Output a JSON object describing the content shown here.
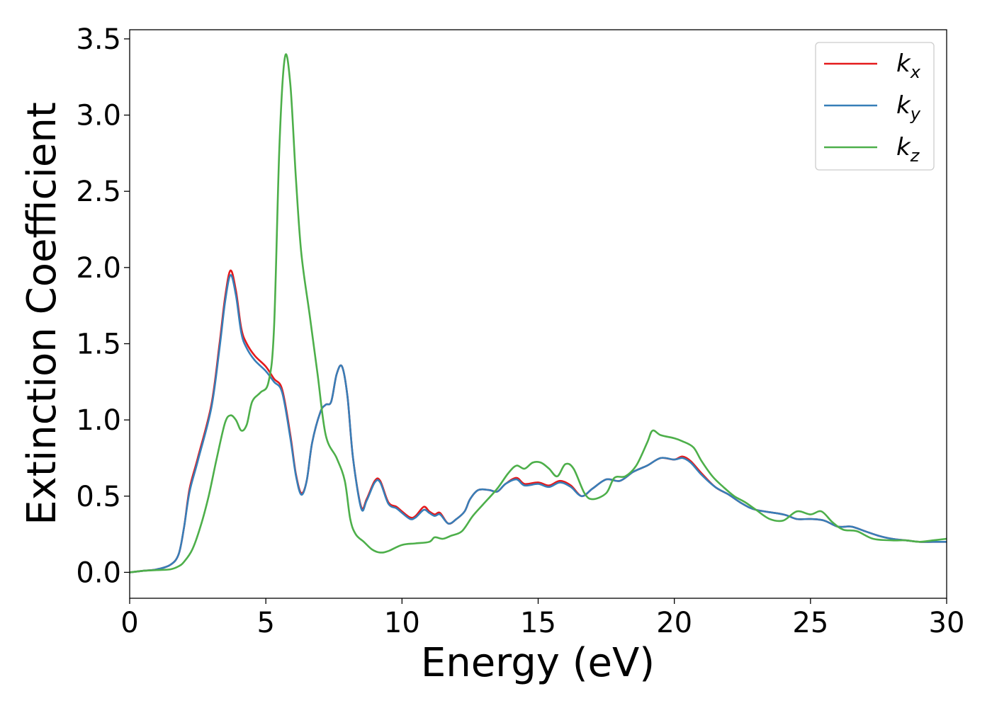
{
  "chart_data": {
    "type": "line",
    "xlabel": "Energy (eV)",
    "ylabel": "Extinction Coefficient",
    "xlim": [
      0,
      30
    ],
    "ylim": [
      -0.17,
      3.56
    ],
    "xticks": [
      "0",
      "5",
      "10",
      "15",
      "20",
      "25",
      "30"
    ],
    "yticks": [
      "0.0",
      "0.5",
      "1.0",
      "1.5",
      "2.0",
      "2.5",
      "3.0",
      "3.5"
    ],
    "grid": false,
    "legend_position": "top-right",
    "series": [
      {
        "name": "k",
        "sub": "x",
        "color": "#e41a1c",
        "points": [
          [
            0,
            0
          ],
          [
            0.5,
            0.01
          ],
          [
            1,
            0.02
          ],
          [
            1.5,
            0.05
          ],
          [
            1.8,
            0.12
          ],
          [
            2,
            0.3
          ],
          [
            2.2,
            0.55
          ],
          [
            2.5,
            0.75
          ],
          [
            3,
            1.1
          ],
          [
            3.3,
            1.5
          ],
          [
            3.5,
            1.8
          ],
          [
            3.7,
            1.98
          ],
          [
            3.9,
            1.85
          ],
          [
            4.1,
            1.6
          ],
          [
            4.3,
            1.5
          ],
          [
            4.6,
            1.42
          ],
          [
            5,
            1.35
          ],
          [
            5.3,
            1.27
          ],
          [
            5.6,
            1.2
          ],
          [
            5.9,
            0.9
          ],
          [
            6.1,
            0.65
          ],
          [
            6.3,
            0.52
          ],
          [
            6.5,
            0.6
          ],
          [
            6.7,
            0.85
          ],
          [
            7,
            1.05
          ],
          [
            7.2,
            1.1
          ],
          [
            7.4,
            1.12
          ],
          [
            7.6,
            1.3
          ],
          [
            7.8,
            1.35
          ],
          [
            8,
            1.15
          ],
          [
            8.2,
            0.75
          ],
          [
            8.5,
            0.43
          ],
          [
            8.7,
            0.48
          ],
          [
            9,
            0.6
          ],
          [
            9.2,
            0.6
          ],
          [
            9.5,
            0.46
          ],
          [
            9.8,
            0.43
          ],
          [
            10,
            0.4
          ],
          [
            10.3,
            0.36
          ],
          [
            10.5,
            0.37
          ],
          [
            10.8,
            0.43
          ],
          [
            11,
            0.4
          ],
          [
            11.2,
            0.38
          ],
          [
            11.4,
            0.39
          ],
          [
            11.7,
            0.32
          ],
          [
            12,
            0.35
          ],
          [
            12.3,
            0.4
          ],
          [
            12.5,
            0.48
          ],
          [
            12.8,
            0.54
          ],
          [
            13.2,
            0.54
          ],
          [
            13.5,
            0.53
          ],
          [
            13.8,
            0.58
          ],
          [
            14.2,
            0.62
          ],
          [
            14.5,
            0.58
          ],
          [
            15,
            0.59
          ],
          [
            15.4,
            0.57
          ],
          [
            15.8,
            0.6
          ],
          [
            16.2,
            0.57
          ],
          [
            16.6,
            0.5
          ],
          [
            17,
            0.55
          ],
          [
            17.5,
            0.61
          ],
          [
            18,
            0.6
          ],
          [
            18.5,
            0.66
          ],
          [
            19,
            0.7
          ],
          [
            19.5,
            0.75
          ],
          [
            20,
            0.74
          ],
          [
            20.3,
            0.76
          ],
          [
            20.6,
            0.73
          ],
          [
            21,
            0.65
          ],
          [
            21.5,
            0.56
          ],
          [
            22,
            0.51
          ],
          [
            22.5,
            0.45
          ],
          [
            23,
            0.41
          ],
          [
            24,
            0.38
          ],
          [
            24.5,
            0.35
          ],
          [
            25,
            0.35
          ],
          [
            25.5,
            0.34
          ],
          [
            26,
            0.3
          ],
          [
            26.5,
            0.3
          ],
          [
            27,
            0.27
          ],
          [
            27.5,
            0.24
          ],
          [
            28,
            0.22
          ],
          [
            28.5,
            0.21
          ],
          [
            29,
            0.2
          ],
          [
            29.5,
            0.2
          ],
          [
            30,
            0.2
          ]
        ]
      },
      {
        "name": "k",
        "sub": "y",
        "color": "#377eb8",
        "points": [
          [
            0,
            0
          ],
          [
            0.5,
            0.01
          ],
          [
            1,
            0.02
          ],
          [
            1.5,
            0.05
          ],
          [
            1.8,
            0.12
          ],
          [
            2,
            0.3
          ],
          [
            2.2,
            0.53
          ],
          [
            2.5,
            0.73
          ],
          [
            3,
            1.08
          ],
          [
            3.3,
            1.47
          ],
          [
            3.5,
            1.77
          ],
          [
            3.7,
            1.95
          ],
          [
            3.9,
            1.82
          ],
          [
            4.1,
            1.57
          ],
          [
            4.3,
            1.47
          ],
          [
            4.6,
            1.39
          ],
          [
            5,
            1.32
          ],
          [
            5.3,
            1.25
          ],
          [
            5.6,
            1.18
          ],
          [
            5.9,
            0.88
          ],
          [
            6.1,
            0.64
          ],
          [
            6.3,
            0.51
          ],
          [
            6.5,
            0.6
          ],
          [
            6.7,
            0.85
          ],
          [
            7,
            1.05
          ],
          [
            7.2,
            1.1
          ],
          [
            7.4,
            1.12
          ],
          [
            7.6,
            1.3
          ],
          [
            7.8,
            1.35
          ],
          [
            8,
            1.15
          ],
          [
            8.2,
            0.75
          ],
          [
            8.5,
            0.42
          ],
          [
            8.7,
            0.47
          ],
          [
            9,
            0.59
          ],
          [
            9.2,
            0.59
          ],
          [
            9.5,
            0.45
          ],
          [
            9.8,
            0.42
          ],
          [
            10,
            0.39
          ],
          [
            10.3,
            0.35
          ],
          [
            10.5,
            0.36
          ],
          [
            10.8,
            0.41
          ],
          [
            11,
            0.39
          ],
          [
            11.2,
            0.37
          ],
          [
            11.4,
            0.38
          ],
          [
            11.7,
            0.32
          ],
          [
            12,
            0.35
          ],
          [
            12.3,
            0.4
          ],
          [
            12.5,
            0.48
          ],
          [
            12.8,
            0.54
          ],
          [
            13.2,
            0.54
          ],
          [
            13.5,
            0.53
          ],
          [
            13.8,
            0.58
          ],
          [
            14.2,
            0.61
          ],
          [
            14.5,
            0.57
          ],
          [
            15,
            0.58
          ],
          [
            15.4,
            0.56
          ],
          [
            15.8,
            0.59
          ],
          [
            16.2,
            0.56
          ],
          [
            16.6,
            0.5
          ],
          [
            17,
            0.55
          ],
          [
            17.5,
            0.61
          ],
          [
            18,
            0.6
          ],
          [
            18.5,
            0.66
          ],
          [
            19,
            0.7
          ],
          [
            19.5,
            0.75
          ],
          [
            20,
            0.74
          ],
          [
            20.3,
            0.75
          ],
          [
            20.6,
            0.72
          ],
          [
            21,
            0.64
          ],
          [
            21.5,
            0.56
          ],
          [
            22,
            0.51
          ],
          [
            22.5,
            0.45
          ],
          [
            23,
            0.41
          ],
          [
            24,
            0.38
          ],
          [
            24.5,
            0.35
          ],
          [
            25,
            0.35
          ],
          [
            25.5,
            0.34
          ],
          [
            26,
            0.3
          ],
          [
            26.5,
            0.3
          ],
          [
            27,
            0.27
          ],
          [
            27.5,
            0.24
          ],
          [
            28,
            0.22
          ],
          [
            28.5,
            0.21
          ],
          [
            29,
            0.2
          ],
          [
            29.5,
            0.2
          ],
          [
            30,
            0.2
          ]
        ]
      },
      {
        "name": "k",
        "sub": "z",
        "color": "#4daf4a",
        "points": [
          [
            0,
            0
          ],
          [
            0.5,
            0.01
          ],
          [
            1,
            0.015
          ],
          [
            1.5,
            0.02
          ],
          [
            1.8,
            0.04
          ],
          [
            2,
            0.07
          ],
          [
            2.3,
            0.15
          ],
          [
            2.6,
            0.3
          ],
          [
            2.9,
            0.5
          ],
          [
            3.2,
            0.75
          ],
          [
            3.5,
            0.98
          ],
          [
            3.7,
            1.03
          ],
          [
            3.9,
            1.0
          ],
          [
            4.1,
            0.93
          ],
          [
            4.3,
            0.97
          ],
          [
            4.5,
            1.12
          ],
          [
            4.8,
            1.18
          ],
          [
            5.1,
            1.25
          ],
          [
            5.3,
            1.6
          ],
          [
            5.5,
            2.8
          ],
          [
            5.7,
            3.38
          ],
          [
            5.9,
            3.2
          ],
          [
            6.1,
            2.6
          ],
          [
            6.3,
            2.1
          ],
          [
            6.6,
            1.7
          ],
          [
            6.9,
            1.3
          ],
          [
            7.2,
            0.9
          ],
          [
            7.6,
            0.75
          ],
          [
            7.9,
            0.6
          ],
          [
            8.1,
            0.35
          ],
          [
            8.3,
            0.25
          ],
          [
            8.6,
            0.2
          ],
          [
            8.9,
            0.15
          ],
          [
            9.2,
            0.13
          ],
          [
            9.5,
            0.14
          ],
          [
            10,
            0.18
          ],
          [
            10.5,
            0.19
          ],
          [
            11,
            0.2
          ],
          [
            11.2,
            0.23
          ],
          [
            11.5,
            0.22
          ],
          [
            11.8,
            0.24
          ],
          [
            12.2,
            0.27
          ],
          [
            12.6,
            0.37
          ],
          [
            13,
            0.45
          ],
          [
            13.5,
            0.55
          ],
          [
            13.9,
            0.65
          ],
          [
            14.2,
            0.7
          ],
          [
            14.5,
            0.68
          ],
          [
            14.8,
            0.72
          ],
          [
            15.1,
            0.72
          ],
          [
            15.4,
            0.68
          ],
          [
            15.7,
            0.63
          ],
          [
            16,
            0.71
          ],
          [
            16.3,
            0.68
          ],
          [
            16.7,
            0.52
          ],
          [
            17,
            0.48
          ],
          [
            17.5,
            0.52
          ],
          [
            17.8,
            0.62
          ],
          [
            18.2,
            0.63
          ],
          [
            18.6,
            0.7
          ],
          [
            19,
            0.85
          ],
          [
            19.2,
            0.93
          ],
          [
            19.5,
            0.9
          ],
          [
            20,
            0.88
          ],
          [
            20.3,
            0.86
          ],
          [
            20.7,
            0.82
          ],
          [
            21,
            0.73
          ],
          [
            21.4,
            0.63
          ],
          [
            21.8,
            0.56
          ],
          [
            22.2,
            0.5
          ],
          [
            22.6,
            0.46
          ],
          [
            23,
            0.41
          ],
          [
            23.5,
            0.35
          ],
          [
            24,
            0.34
          ],
          [
            24.5,
            0.4
          ],
          [
            25,
            0.38
          ],
          [
            25.4,
            0.4
          ],
          [
            25.8,
            0.33
          ],
          [
            26.2,
            0.28
          ],
          [
            26.7,
            0.27
          ],
          [
            27.3,
            0.22
          ],
          [
            28,
            0.21
          ],
          [
            28.5,
            0.21
          ],
          [
            29,
            0.2
          ],
          [
            29.5,
            0.21
          ],
          [
            30,
            0.22
          ]
        ]
      }
    ]
  }
}
